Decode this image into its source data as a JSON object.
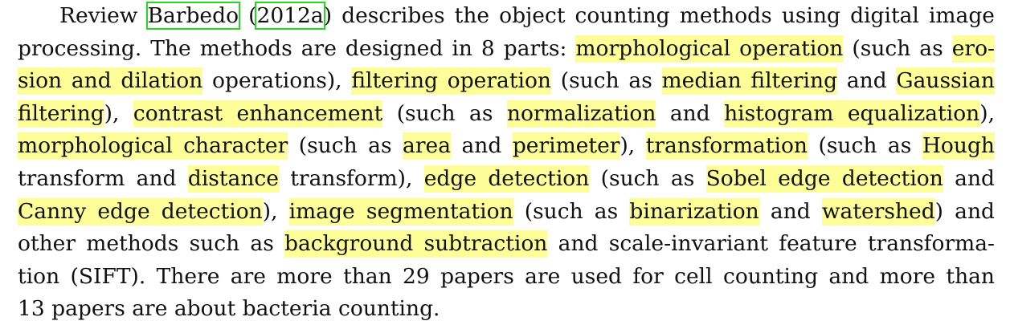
{
  "paragraph": {
    "lines": [
      [
        {
          "text": "Review ",
          "type": "plain"
        },
        {
          "text": "Barbedo",
          "type": "cite"
        },
        {
          "text": " (",
          "type": "plain"
        },
        {
          "text": "2012a",
          "type": "cite"
        },
        {
          "text": ") describes the object counting methods using digital image",
          "type": "plain"
        }
      ],
      [
        {
          "text": "processing. The methods are designed in 8 parts: ",
          "type": "plain"
        },
        {
          "text": "morphological operation",
          "type": "highlight"
        },
        {
          "text": " (such as ",
          "type": "plain"
        },
        {
          "text": "ero-",
          "type": "highlight"
        }
      ],
      [
        {
          "text": "sion and dilation",
          "type": "highlight"
        },
        {
          "text": " operations), ",
          "type": "plain"
        },
        {
          "text": "filtering operation",
          "type": "highlight"
        },
        {
          "text": " (such as ",
          "type": "plain"
        },
        {
          "text": "median filtering",
          "type": "highlight"
        },
        {
          "text": " and ",
          "type": "plain"
        },
        {
          "text": "Gaussian",
          "type": "highlight"
        }
      ],
      [
        {
          "text": "filtering",
          "type": "highlight"
        },
        {
          "text": "), ",
          "type": "plain"
        },
        {
          "text": "contrast enhancement",
          "type": "highlight"
        },
        {
          "text": " (such as ",
          "type": "plain"
        },
        {
          "text": "normalization",
          "type": "highlight"
        },
        {
          "text": " and ",
          "type": "plain"
        },
        {
          "text": "histogram equalization",
          "type": "highlight"
        },
        {
          "text": "),",
          "type": "plain"
        }
      ],
      [
        {
          "text": "morphological character",
          "type": "highlight"
        },
        {
          "text": " (such as ",
          "type": "plain"
        },
        {
          "text": "area",
          "type": "highlight"
        },
        {
          "text": " and ",
          "type": "plain"
        },
        {
          "text": "perimeter",
          "type": "highlight"
        },
        {
          "text": "), ",
          "type": "plain"
        },
        {
          "text": "transformation",
          "type": "highlight"
        },
        {
          "text": " (such as ",
          "type": "plain"
        },
        {
          "text": "Hough",
          "type": "highlight"
        }
      ],
      [
        {
          "text": "transform and ",
          "type": "plain"
        },
        {
          "text": "distance",
          "type": "highlight"
        },
        {
          "text": " transform), ",
          "type": "plain"
        },
        {
          "text": "edge detection",
          "type": "highlight"
        },
        {
          "text": " (such as ",
          "type": "plain"
        },
        {
          "text": "Sobel edge detection",
          "type": "highlight"
        },
        {
          "text": " and",
          "type": "plain"
        }
      ],
      [
        {
          "text": "Canny edge detection",
          "type": "highlight"
        },
        {
          "text": "), ",
          "type": "plain"
        },
        {
          "text": "image segmentation",
          "type": "highlight"
        },
        {
          "text": " (such as ",
          "type": "plain"
        },
        {
          "text": "binarization",
          "type": "highlight"
        },
        {
          "text": " and ",
          "type": "plain"
        },
        {
          "text": "watershed",
          "type": "highlight"
        },
        {
          "text": ") and",
          "type": "plain"
        }
      ],
      [
        {
          "text": "other methods such as ",
          "type": "plain"
        },
        {
          "text": "background subtraction",
          "type": "highlight"
        },
        {
          "text": " and scale-invariant feature transforma-",
          "type": "plain"
        }
      ],
      [
        {
          "text": "tion (SIFT). There are more than 29 papers are used for cell counting and more than",
          "type": "plain"
        }
      ],
      [
        {
          "text": "13 papers are about bacteria counting.",
          "type": "plain"
        }
      ]
    ]
  },
  "colors": {
    "highlight": "#fefe99",
    "citation_box": "#1fdc1f",
    "text": "#111111"
  }
}
